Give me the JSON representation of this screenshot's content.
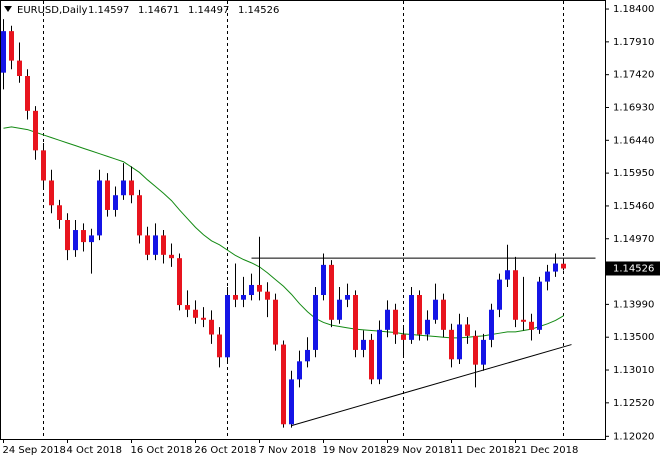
{
  "chart_data": {
    "type": "candlestick",
    "title": "EURUSD,Daily",
    "categories": [
      "24 Sep 2018",
      null,
      null,
      null,
      null,
      null,
      null,
      null,
      "4 Oct 2018",
      null,
      null,
      null,
      null,
      null,
      null,
      null,
      "16 Oct 2018",
      null,
      null,
      null,
      null,
      null,
      null,
      null,
      "26 Oct 2018",
      null,
      null,
      null,
      null,
      null,
      null,
      null,
      "7 Nov 2018",
      null,
      null,
      null,
      null,
      null,
      null,
      null,
      "19 Nov 2018",
      null,
      null,
      null,
      null,
      null,
      null,
      null,
      "29 Nov 2018",
      null,
      null,
      null,
      null,
      null,
      null,
      null,
      "11 Dec 2018",
      null,
      null,
      null,
      null,
      null,
      null,
      null,
      "21 Dec 2018",
      null,
      null,
      null,
      null,
      null,
      null
    ],
    "open": [
      1.1745,
      1.1807,
      1.1763,
      1.174,
      1.1688,
      1.1629,
      1.1584,
      1.1547,
      1.1525,
      1.148,
      1.151,
      1.1492,
      1.1502,
      1.1584,
      1.154,
      1.1562,
      1.1584,
      1.1562,
      1.1502,
      1.1473,
      1.1502,
      1.1473,
      1.1468,
      1.1398,
      1.1391,
      1.1379,
      1.1376,
      1.1354,
      1.132,
      1.1413,
      1.1406,
      1.1413,
      1.1428,
      1.1418,
      1.1406,
      1.1339,
      1.122,
      1.1287,
      1.1314,
      1.1331,
      1.1413,
      1.1458,
      1.1376,
      1.1406,
      1.1413,
      1.1331,
      1.1346,
      1.1287,
      1.1361,
      1.1391,
      1.1354,
      1.1346,
      1.1413,
      1.1354,
      1.1376,
      1.1406,
      1.1361,
      1.1317,
      1.1369,
      1.1352,
      1.1309,
      1.1346,
      1.1391,
      1.1436,
      1.145,
      1.1376,
      1.1373,
      1.1361,
      1.1433,
      1.1448,
      1.14597
    ],
    "high": [
      1.1825,
      1.1815,
      1.179,
      1.175,
      1.1695,
      1.164,
      1.16,
      1.1555,
      1.1535,
      1.1525,
      1.152,
      1.1512,
      1.16,
      1.1595,
      1.1575,
      1.161,
      1.1605,
      1.157,
      1.1515,
      1.152,
      1.151,
      1.149,
      1.1475,
      1.142,
      1.1405,
      1.1395,
      1.139,
      1.1365,
      1.1425,
      1.146,
      1.144,
      1.1445,
      1.15,
      1.1432,
      1.1415,
      1.1345,
      1.13,
      1.133,
      1.135,
      1.1425,
      1.1475,
      1.1465,
      1.1425,
      1.143,
      1.142,
      1.136,
      1.1355,
      1.1375,
      1.1405,
      1.14,
      1.1365,
      1.1425,
      1.142,
      1.139,
      1.143,
      1.1415,
      1.137,
      1.1385,
      1.138,
      1.136,
      1.1355,
      1.14,
      1.1445,
      1.1488,
      1.147,
      1.144,
      1.1385,
      1.144,
      1.1458,
      1.1475,
      1.14671
    ],
    "low": [
      1.172,
      1.175,
      1.173,
      1.1675,
      1.1615,
      1.157,
      1.1535,
      1.1512,
      1.1465,
      1.147,
      1.1478,
      1.1445,
      1.1495,
      1.153,
      1.153,
      1.1555,
      1.155,
      1.149,
      1.1465,
      1.1465,
      1.146,
      1.1455,
      1.139,
      1.138,
      1.137,
      1.1365,
      1.134,
      1.1305,
      1.131,
      1.1395,
      1.1395,
      1.1405,
      1.1405,
      1.138,
      1.133,
      1.1215,
      1.1215,
      1.1275,
      1.1305,
      1.132,
      1.1405,
      1.1365,
      1.137,
      1.1395,
      1.132,
      1.132,
      1.128,
      1.128,
      1.135,
      1.134,
      1.132,
      1.134,
      1.1345,
      1.1345,
      1.137,
      1.135,
      1.1305,
      1.131,
      1.134,
      1.1275,
      1.13,
      1.1335,
      1.138,
      1.1425,
      1.1365,
      1.136,
      1.1345,
      1.1355,
      1.142,
      1.144,
      1.14497
    ],
    "close": [
      1.1807,
      1.1763,
      1.174,
      1.1688,
      1.1629,
      1.1584,
      1.1547,
      1.1525,
      1.148,
      1.151,
      1.1492,
      1.1502,
      1.1584,
      1.154,
      1.1562,
      1.1584,
      1.1562,
      1.1502,
      1.1473,
      1.1502,
      1.1473,
      1.1468,
      1.1398,
      1.1391,
      1.1379,
      1.1376,
      1.1354,
      1.132,
      1.1413,
      1.1406,
      1.1413,
      1.1428,
      1.1418,
      1.1406,
      1.1339,
      1.122,
      1.1287,
      1.1314,
      1.1331,
      1.1413,
      1.1458,
      1.1376,
      1.1406,
      1.1413,
      1.1331,
      1.1346,
      1.1287,
      1.1361,
      1.1391,
      1.1354,
      1.1346,
      1.1413,
      1.1354,
      1.1376,
      1.1406,
      1.1361,
      1.1317,
      1.1369,
      1.1352,
      1.1309,
      1.1346,
      1.1391,
      1.1436,
      1.145,
      1.1376,
      1.1373,
      1.1361,
      1.1433,
      1.1448,
      1.146,
      1.14526
    ],
    "up_color": "#1414e6",
    "down_color": "#e8141e",
    "wick_color": "#000000",
    "ma": {
      "color": "#138a13",
      "values": [
        1.1662,
        1.1664,
        1.1662,
        1.166,
        1.1656,
        1.1652,
        1.1648,
        1.1644,
        1.164,
        1.1636,
        1.1632,
        1.1628,
        1.1624,
        1.162,
        1.1616,
        1.1612,
        1.1604,
        1.1596,
        1.1585,
        1.1575,
        1.1565,
        1.1554,
        1.154,
        1.1527,
        1.1514,
        1.1503,
        1.1494,
        1.1488,
        1.148,
        1.1472,
        1.1466,
        1.1461,
        1.1455,
        1.1446,
        1.1436,
        1.1426,
        1.1414,
        1.14,
        1.1388,
        1.1378,
        1.1372,
        1.1368,
        1.1366,
        1.1364,
        1.1362,
        1.1361,
        1.136,
        1.1359,
        1.1358,
        1.1357,
        1.1355,
        1.1354,
        1.1353,
        1.1352,
        1.1351,
        1.135,
        1.1349,
        1.1349,
        1.135,
        1.1351,
        1.1352,
        1.1354,
        1.1356,
        1.1358,
        1.1358,
        1.136,
        1.1362,
        1.1366,
        1.137,
        1.1375,
        1.1382
      ]
    },
    "trendlines": [
      {
        "color": "#000000",
        "x": [
          31,
          74
        ],
        "y": [
          1.1468,
          1.1468
        ]
      },
      {
        "color": "#000000",
        "x": [
          36,
          71
        ],
        "y": [
          1.1218,
          1.1339
        ]
      }
    ],
    "ylim": [
      1.1198,
      1.1852
    ],
    "yticks": [
      {
        "value": 1.184,
        "label": "1.18400"
      },
      {
        "value": 1.1791,
        "label": "1.17910"
      },
      {
        "value": 1.1742,
        "label": "1.17420"
      },
      {
        "value": 1.1693,
        "label": "1.16930"
      },
      {
        "value": 1.1644,
        "label": "1.16440"
      },
      {
        "value": 1.1595,
        "label": "1.15950"
      },
      {
        "value": 1.1546,
        "label": "1.15460"
      },
      {
        "value": 1.1497,
        "label": "1.14970"
      },
      {
        "value": 1.1399,
        "label": "1.13990"
      },
      {
        "value": 1.135,
        "label": "1.13500"
      },
      {
        "value": 1.1301,
        "label": "1.13010"
      },
      {
        "value": 1.1252,
        "label": "1.12520"
      },
      {
        "value": 1.1202,
        "label": "1.12020"
      }
    ],
    "grid": false
  }
}
